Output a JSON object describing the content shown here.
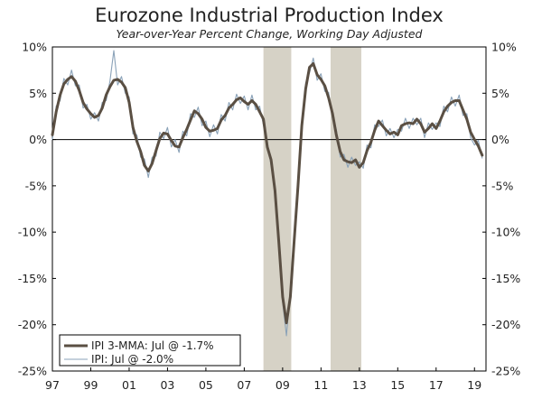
{
  "chart_data": {
    "type": "line",
    "title": "Eurozone Industrial Production Index",
    "subtitle": "Year-over-Year Percent Change, Working Day Adjusted",
    "xlabel": "",
    "ylabel": "",
    "ylim": [
      -25,
      10
    ],
    "xlim": [
      1997.0,
      2019.6
    ],
    "y_ticks": [
      10,
      5,
      0,
      -5,
      -10,
      -15,
      -20,
      -25
    ],
    "y_tick_labels": [
      "10%",
      "5%",
      "0%",
      "-5%",
      "-10%",
      "-15%",
      "-20%",
      "-25%"
    ],
    "x_ticks": [
      1997,
      1999,
      2001,
      2003,
      2005,
      2007,
      2009,
      2011,
      2013,
      2015,
      2017,
      2019
    ],
    "x_tick_labels": [
      "97",
      "99",
      "01",
      "03",
      "05",
      "07",
      "09",
      "11",
      "13",
      "15",
      "17",
      "19"
    ],
    "grid": false,
    "legend_position": "bottom-left",
    "recessions": [
      [
        2008.0,
        2009.45
      ],
      [
        2011.5,
        2013.1
      ]
    ],
    "colors": {
      "mma": "#5a4f43",
      "ipi": "#8aa2b8",
      "recession": "#d6d2c6",
      "zero_line": "#000000",
      "axis": "#000000"
    },
    "series": [
      {
        "name": "IPI 3-MMA: Jul @ -1.7%",
        "x": [
          1997.0,
          1997.2,
          1997.4,
          1997.6,
          1997.8,
          1998.0,
          1998.2,
          1998.4,
          1998.6,
          1998.8,
          1999.0,
          1999.2,
          1999.4,
          1999.6,
          1999.8,
          2000.0,
          2000.2,
          2000.4,
          2000.6,
          2000.8,
          2001.0,
          2001.2,
          2001.4,
          2001.6,
          2001.8,
          2002.0,
          2002.2,
          2002.4,
          2002.6,
          2002.8,
          2003.0,
          2003.2,
          2003.4,
          2003.6,
          2003.8,
          2004.0,
          2004.2,
          2004.4,
          2004.6,
          2004.8,
          2005.0,
          2005.2,
          2005.4,
          2005.6,
          2005.8,
          2006.0,
          2006.2,
          2006.4,
          2006.6,
          2006.8,
          2007.0,
          2007.2,
          2007.4,
          2007.6,
          2007.8,
          2008.0,
          2008.2,
          2008.4,
          2008.6,
          2008.8,
          2009.0,
          2009.2,
          2009.4,
          2009.6,
          2009.8,
          2010.0,
          2010.2,
          2010.4,
          2010.6,
          2010.8,
          2011.0,
          2011.2,
          2011.4,
          2011.6,
          2011.8,
          2012.0,
          2012.2,
          2012.4,
          2012.6,
          2012.8,
          2013.0,
          2013.2,
          2013.4,
          2013.6,
          2013.8,
          2014.0,
          2014.2,
          2014.4,
          2014.6,
          2014.8,
          2015.0,
          2015.2,
          2015.4,
          2015.6,
          2015.8,
          2016.0,
          2016.2,
          2016.4,
          2016.6,
          2016.8,
          2017.0,
          2017.2,
          2017.4,
          2017.6,
          2017.8,
          2018.0,
          2018.2,
          2018.4,
          2018.6,
          2018.8,
          2019.0,
          2019.2,
          2019.4
        ],
        "values": [
          0.5,
          3.0,
          4.8,
          6.0,
          6.5,
          6.8,
          6.3,
          5.3,
          4.0,
          3.3,
          2.8,
          2.4,
          2.6,
          3.4,
          4.8,
          5.7,
          6.4,
          6.5,
          6.2,
          5.6,
          4.0,
          1.3,
          -0.2,
          -1.3,
          -2.8,
          -3.4,
          -2.6,
          -1.2,
          0.1,
          0.7,
          0.6,
          -0.1,
          -0.7,
          -0.8,
          0.2,
          1.1,
          2.1,
          3.1,
          2.8,
          2.2,
          1.3,
          0.9,
          1.0,
          1.2,
          2.1,
          2.6,
          3.4,
          3.8,
          4.3,
          4.5,
          4.1,
          3.8,
          4.2,
          3.8,
          3.0,
          2.2,
          -0.8,
          -2.2,
          -5.5,
          -11.0,
          -17.0,
          -19.8,
          -17.0,
          -11.0,
          -5.0,
          1.5,
          5.5,
          7.8,
          8.2,
          7.0,
          6.5,
          5.8,
          4.5,
          2.8,
          0.5,
          -1.3,
          -2.2,
          -2.4,
          -2.5,
          -2.2,
          -3.0,
          -2.5,
          -1.2,
          -0.3,
          1.0,
          2.0,
          1.5,
          1.0,
          0.6,
          0.8,
          0.5,
          1.5,
          1.7,
          1.8,
          1.7,
          2.2,
          1.7,
          0.8,
          1.2,
          1.7,
          1.2,
          2.0,
          3.0,
          3.6,
          4.0,
          4.2,
          4.2,
          3.2,
          2.2,
          0.8,
          0.0,
          -0.7,
          -1.7
        ]
      },
      {
        "name": "IPI: Jul @ -2.0%",
        "x": [
          1997.0,
          1997.2,
          1997.4,
          1997.6,
          1997.8,
          1998.0,
          1998.2,
          1998.4,
          1998.6,
          1998.8,
          1999.0,
          1999.2,
          1999.4,
          1999.6,
          1999.8,
          2000.0,
          2000.2,
          2000.4,
          2000.6,
          2000.8,
          2001.0,
          2001.2,
          2001.4,
          2001.6,
          2001.8,
          2002.0,
          2002.2,
          2002.4,
          2002.6,
          2002.8,
          2003.0,
          2003.2,
          2003.4,
          2003.6,
          2003.8,
          2004.0,
          2004.2,
          2004.4,
          2004.6,
          2004.8,
          2005.0,
          2005.2,
          2005.4,
          2005.6,
          2005.8,
          2006.0,
          2006.2,
          2006.4,
          2006.6,
          2006.8,
          2007.0,
          2007.2,
          2007.4,
          2007.6,
          2007.8,
          2008.0,
          2008.2,
          2008.4,
          2008.6,
          2008.8,
          2009.0,
          2009.2,
          2009.4,
          2009.6,
          2009.8,
          2010.0,
          2010.2,
          2010.4,
          2010.6,
          2010.8,
          2011.0,
          2011.2,
          2011.4,
          2011.6,
          2011.8,
          2012.0,
          2012.2,
          2012.4,
          2012.6,
          2012.8,
          2013.0,
          2013.2,
          2013.4,
          2013.6,
          2013.8,
          2014.0,
          2014.2,
          2014.4,
          2014.6,
          2014.8,
          2015.0,
          2015.2,
          2015.4,
          2015.6,
          2015.8,
          2016.0,
          2016.2,
          2016.4,
          2016.6,
          2016.8,
          2017.0,
          2017.2,
          2017.4,
          2017.6,
          2017.8,
          2018.0,
          2018.2,
          2018.4,
          2018.6,
          2018.8,
          2019.0,
          2019.2,
          2019.4
        ],
        "values": [
          0.0,
          3.6,
          4.2,
          6.6,
          5.9,
          7.5,
          5.8,
          5.9,
          3.4,
          3.8,
          2.2,
          2.9,
          2.0,
          4.0,
          4.2,
          6.3,
          9.6,
          5.9,
          6.8,
          5.0,
          4.6,
          0.6,
          0.5,
          -1.9,
          -2.1,
          -4.1,
          -1.9,
          -1.8,
          0.8,
          0.1,
          1.3,
          -0.8,
          0.0,
          -1.4,
          0.9,
          0.4,
          2.8,
          2.4,
          3.5,
          1.5,
          2.0,
          0.3,
          1.6,
          0.6,
          2.7,
          2.0,
          4.0,
          3.2,
          4.9,
          3.9,
          4.7,
          3.2,
          4.8,
          3.2,
          3.6,
          1.6,
          -0.2,
          -2.8,
          -4.9,
          -11.6,
          -17.6,
          -21.2,
          -16.4,
          -11.6,
          -4.4,
          0.9,
          6.1,
          7.2,
          8.8,
          6.4,
          7.1,
          5.2,
          5.1,
          2.2,
          1.1,
          -1.9,
          -1.6,
          -3.0,
          -1.9,
          -2.8,
          -2.4,
          -3.1,
          -0.6,
          -0.9,
          1.6,
          1.4,
          2.1,
          0.4,
          1.2,
          0.2,
          1.1,
          0.9,
          2.3,
          1.2,
          2.3,
          1.6,
          2.3,
          0.2,
          1.8,
          1.1,
          1.8,
          1.4,
          3.6,
          3.0,
          4.6,
          3.6,
          4.8,
          2.6,
          2.8,
          0.2,
          -0.6,
          -0.1,
          -2.0
        ]
      }
    ]
  }
}
